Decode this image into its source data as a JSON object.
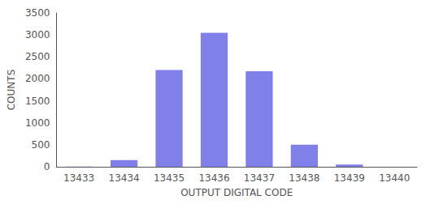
{
  "chart_data": {
    "type": "bar",
    "categories": [
      "13433",
      "13434",
      "13435",
      "13436",
      "13437",
      "13438",
      "13439",
      "13440"
    ],
    "values": [
      5,
      150,
      2200,
      3050,
      2175,
      500,
      50,
      0
    ],
    "color": "#8080e8",
    "xlabel": "OUTPUT DIGITAL CODE",
    "ylabel": "COUNTS",
    "ylim": [
      0,
      3500
    ],
    "yticks": [
      0,
      500,
      1000,
      1500,
      2000,
      2500,
      3000,
      3500
    ],
    "grid": false
  }
}
